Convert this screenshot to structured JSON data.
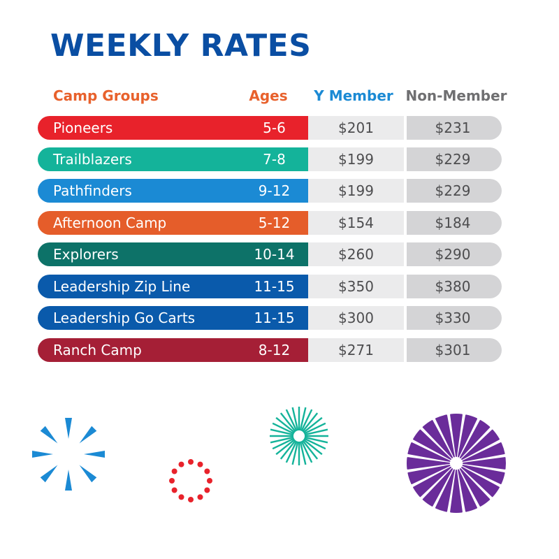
{
  "title": "WEEKLY RATES",
  "headers": {
    "group": "Camp Groups",
    "ages": "Ages",
    "member": "Y Member",
    "non_member": "Non-Member"
  },
  "rows": [
    {
      "name": "Pioneers",
      "ages": "5-6",
      "member": "$201",
      "non_member": "$231",
      "color": "#e8222b"
    },
    {
      "name": "Trailblazers",
      "ages": "7-8",
      "member": "$199",
      "non_member": "$229",
      "color": "#14b39a"
    },
    {
      "name": "Pathfinders",
      "ages": "9-12",
      "member": "$199",
      "non_member": "$229",
      "color": "#1b8ad4"
    },
    {
      "name": "Afternoon Camp",
      "ages": "5-12",
      "member": "$154",
      "non_member": "$184",
      "color": "#e55d2a"
    },
    {
      "name": "Explorers",
      "ages": "10-14",
      "member": "$260",
      "non_member": "$290",
      "color": "#0d7268"
    },
    {
      "name": "Leadership Zip Line",
      "ages": "11-15",
      "member": "$350",
      "non_member": "$380",
      "color": "#0a5aab"
    },
    {
      "name": "Leadership Go Carts",
      "ages": "11-15",
      "member": "$300",
      "non_member": "$330",
      "color": "#0a5aab"
    },
    {
      "name": "Ranch Camp",
      "ages": "8-12",
      "member": "$271",
      "non_member": "$301",
      "color": "#a51f36"
    }
  ],
  "colors": {
    "title": "#0a4ea3",
    "orange_header": "#e8612c",
    "member_header": "#1b8ad4",
    "non_member_header": "#6f6f71",
    "firework_blue": "#1b8ad4",
    "firework_red": "#e8222b",
    "firework_teal": "#14b39a",
    "firework_purple": "#6a2c9a"
  },
  "decorations": [
    "blue-burst-firework-icon",
    "red-dot-ring-firework-icon",
    "teal-ray-firework-icon",
    "purple-petal-firework-icon"
  ]
}
